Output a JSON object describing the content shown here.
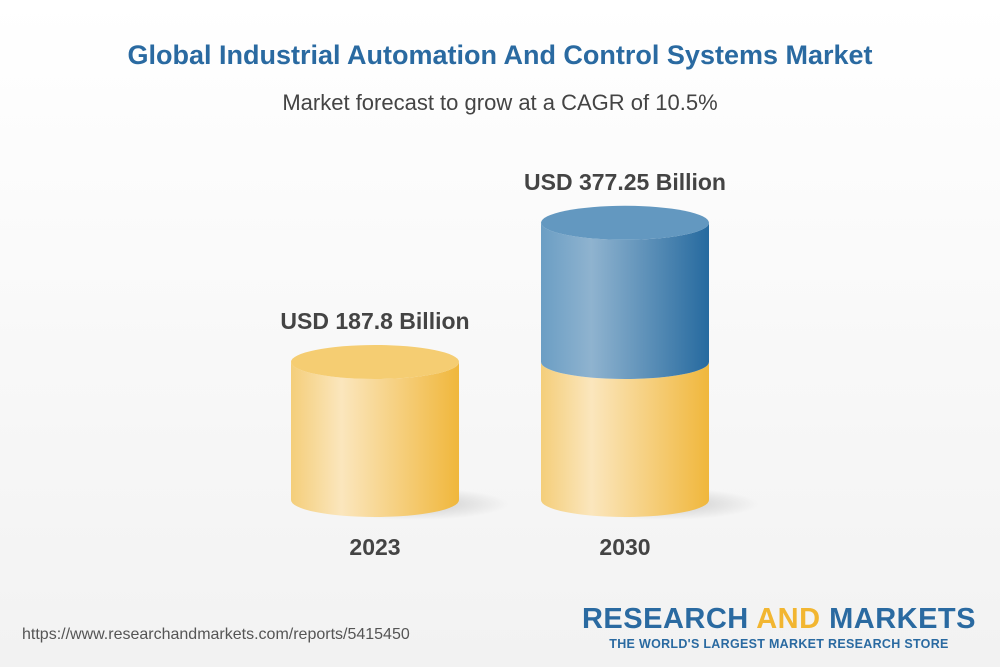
{
  "chart_data": {
    "type": "bar",
    "style": "3d-cylinder",
    "title": "Global Industrial Automation And Control Systems Market",
    "subtitle": "Market forecast to grow at a CAGR of 10.5%",
    "categories": [
      "2023",
      "2030"
    ],
    "values": [
      187.8,
      377.25
    ],
    "data_labels": [
      "USD 187.8 Billion",
      "USD 377.25 Billion"
    ],
    "unit": "USD Billion",
    "grid": false,
    "colors": {
      "base": "#f2b631",
      "growth": "#2a6aa1",
      "title": "#2a6aa1"
    }
  },
  "footer": {
    "url": "https://www.researchandmarkets.com/reports/5415450",
    "logo_part1": "RESEARCH ",
    "logo_part2": "AND",
    "logo_part3": " MARKETS",
    "logo_tagline": "THE WORLD'S LARGEST MARKET RESEARCH STORE"
  }
}
